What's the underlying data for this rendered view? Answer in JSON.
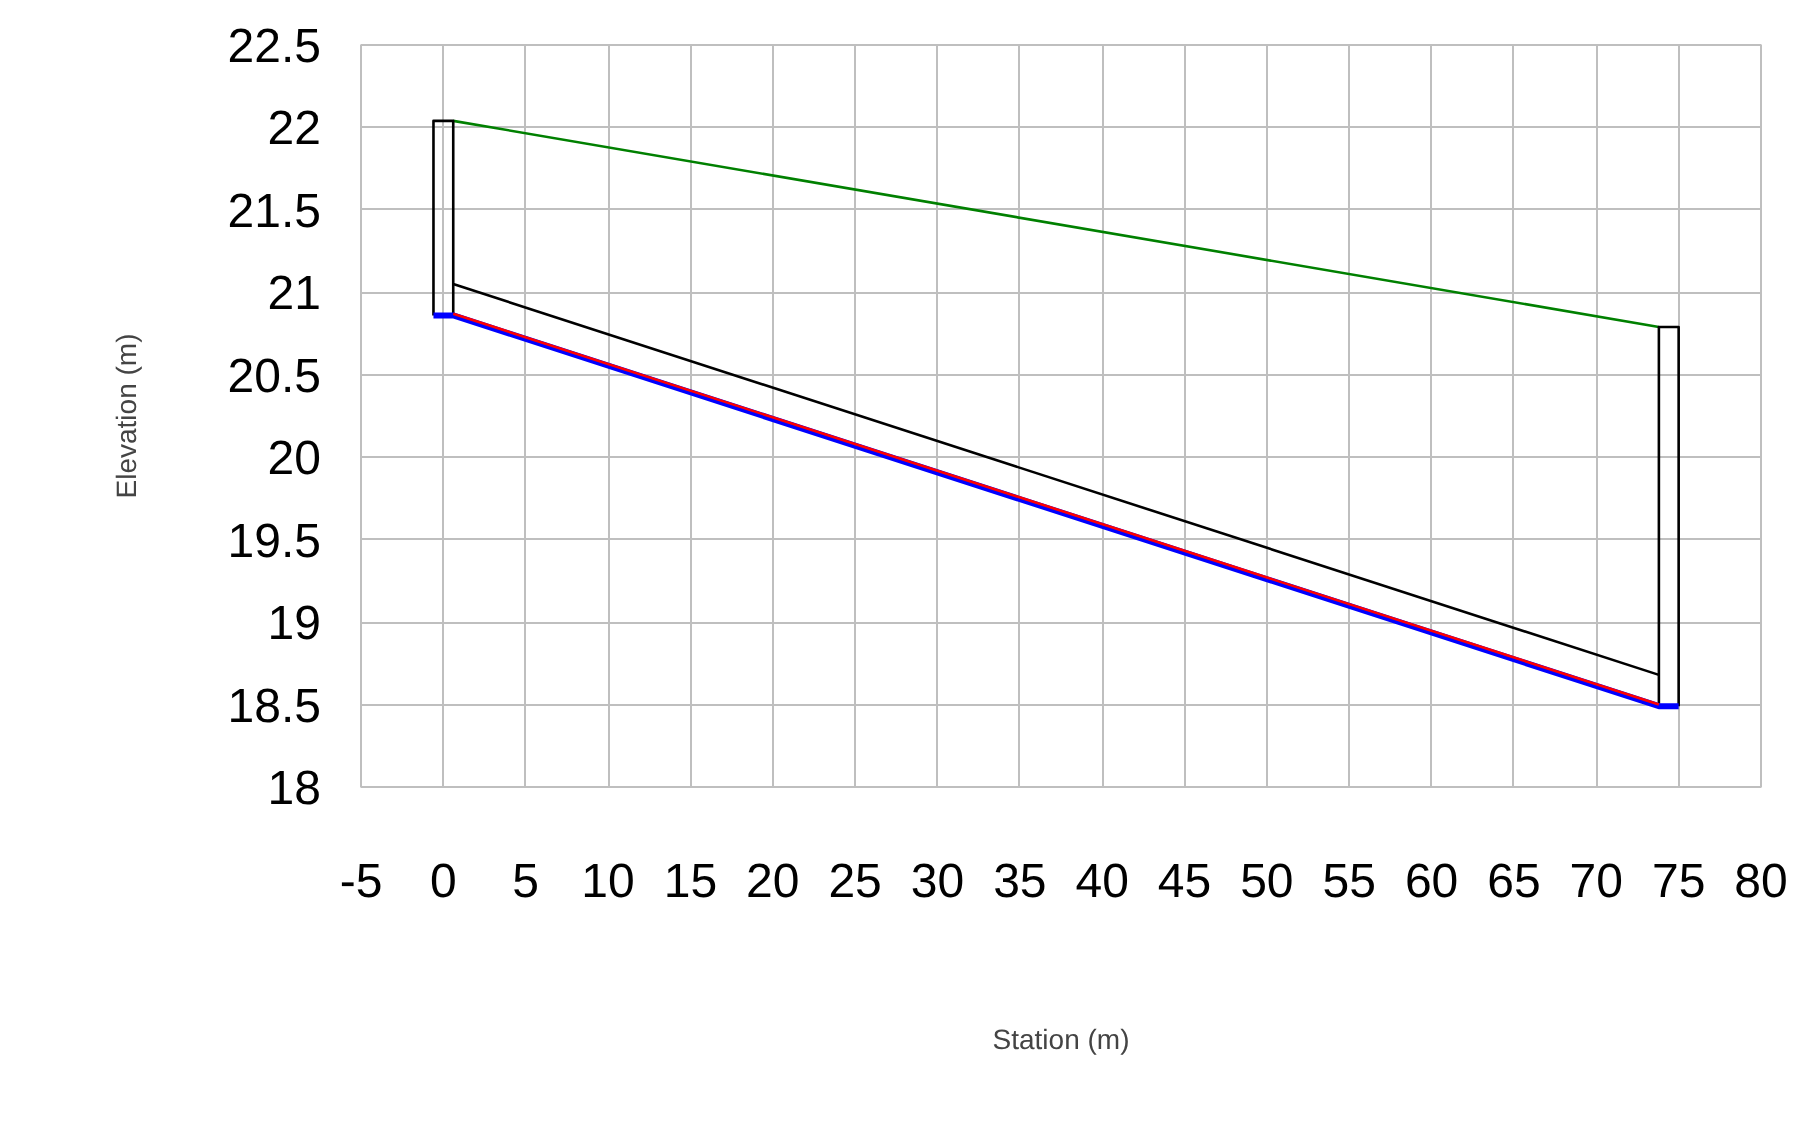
{
  "chart_data": {
    "type": "line",
    "xlabel": "Station (m)",
    "ylabel": "Elevation (m)",
    "xlim": [
      -5,
      80
    ],
    "xticks": [
      -5,
      0,
      5,
      10,
      15,
      20,
      25,
      30,
      35,
      40,
      45,
      50,
      55,
      60,
      65,
      70,
      75,
      80
    ],
    "ylim": [
      18,
      22.5
    ],
    "yticks": [
      18,
      18.5,
      19,
      19.5,
      20,
      20.5,
      21,
      21.5,
      22,
      22.5
    ],
    "grid": true,
    "marker": "none",
    "line_style": "solid",
    "series": [
      {
        "color": "#008000",
        "x": [
          0.6,
          73.8
        ],
        "values": [
          22.04,
          20.79
        ]
      },
      {
        "color": "#000000",
        "x": [
          0.6,
          73.8
        ],
        "values": [
          21.05,
          18.68
        ]
      },
      {
        "color": "#000000",
        "x": [
          -0.6,
          -0.6,
          0.6,
          0.6
        ],
        "values": [
          20.86,
          22.04,
          22.04,
          20.86
        ]
      },
      {
        "color": "#000000",
        "x": [
          73.8,
          73.8,
          75,
          75
        ],
        "values": [
          18.49,
          20.79,
          20.79,
          18.49
        ]
      },
      {
        "color": "#0000ff",
        "x": [
          -0.6,
          0.6,
          73.8,
          75
        ],
        "values": [
          20.86,
          20.86,
          18.49,
          18.49
        ]
      },
      {
        "color": "#ff0000",
        "x": [
          0.6,
          73.8
        ],
        "values": [
          20.87,
          18.5
        ]
      }
    ]
  }
}
